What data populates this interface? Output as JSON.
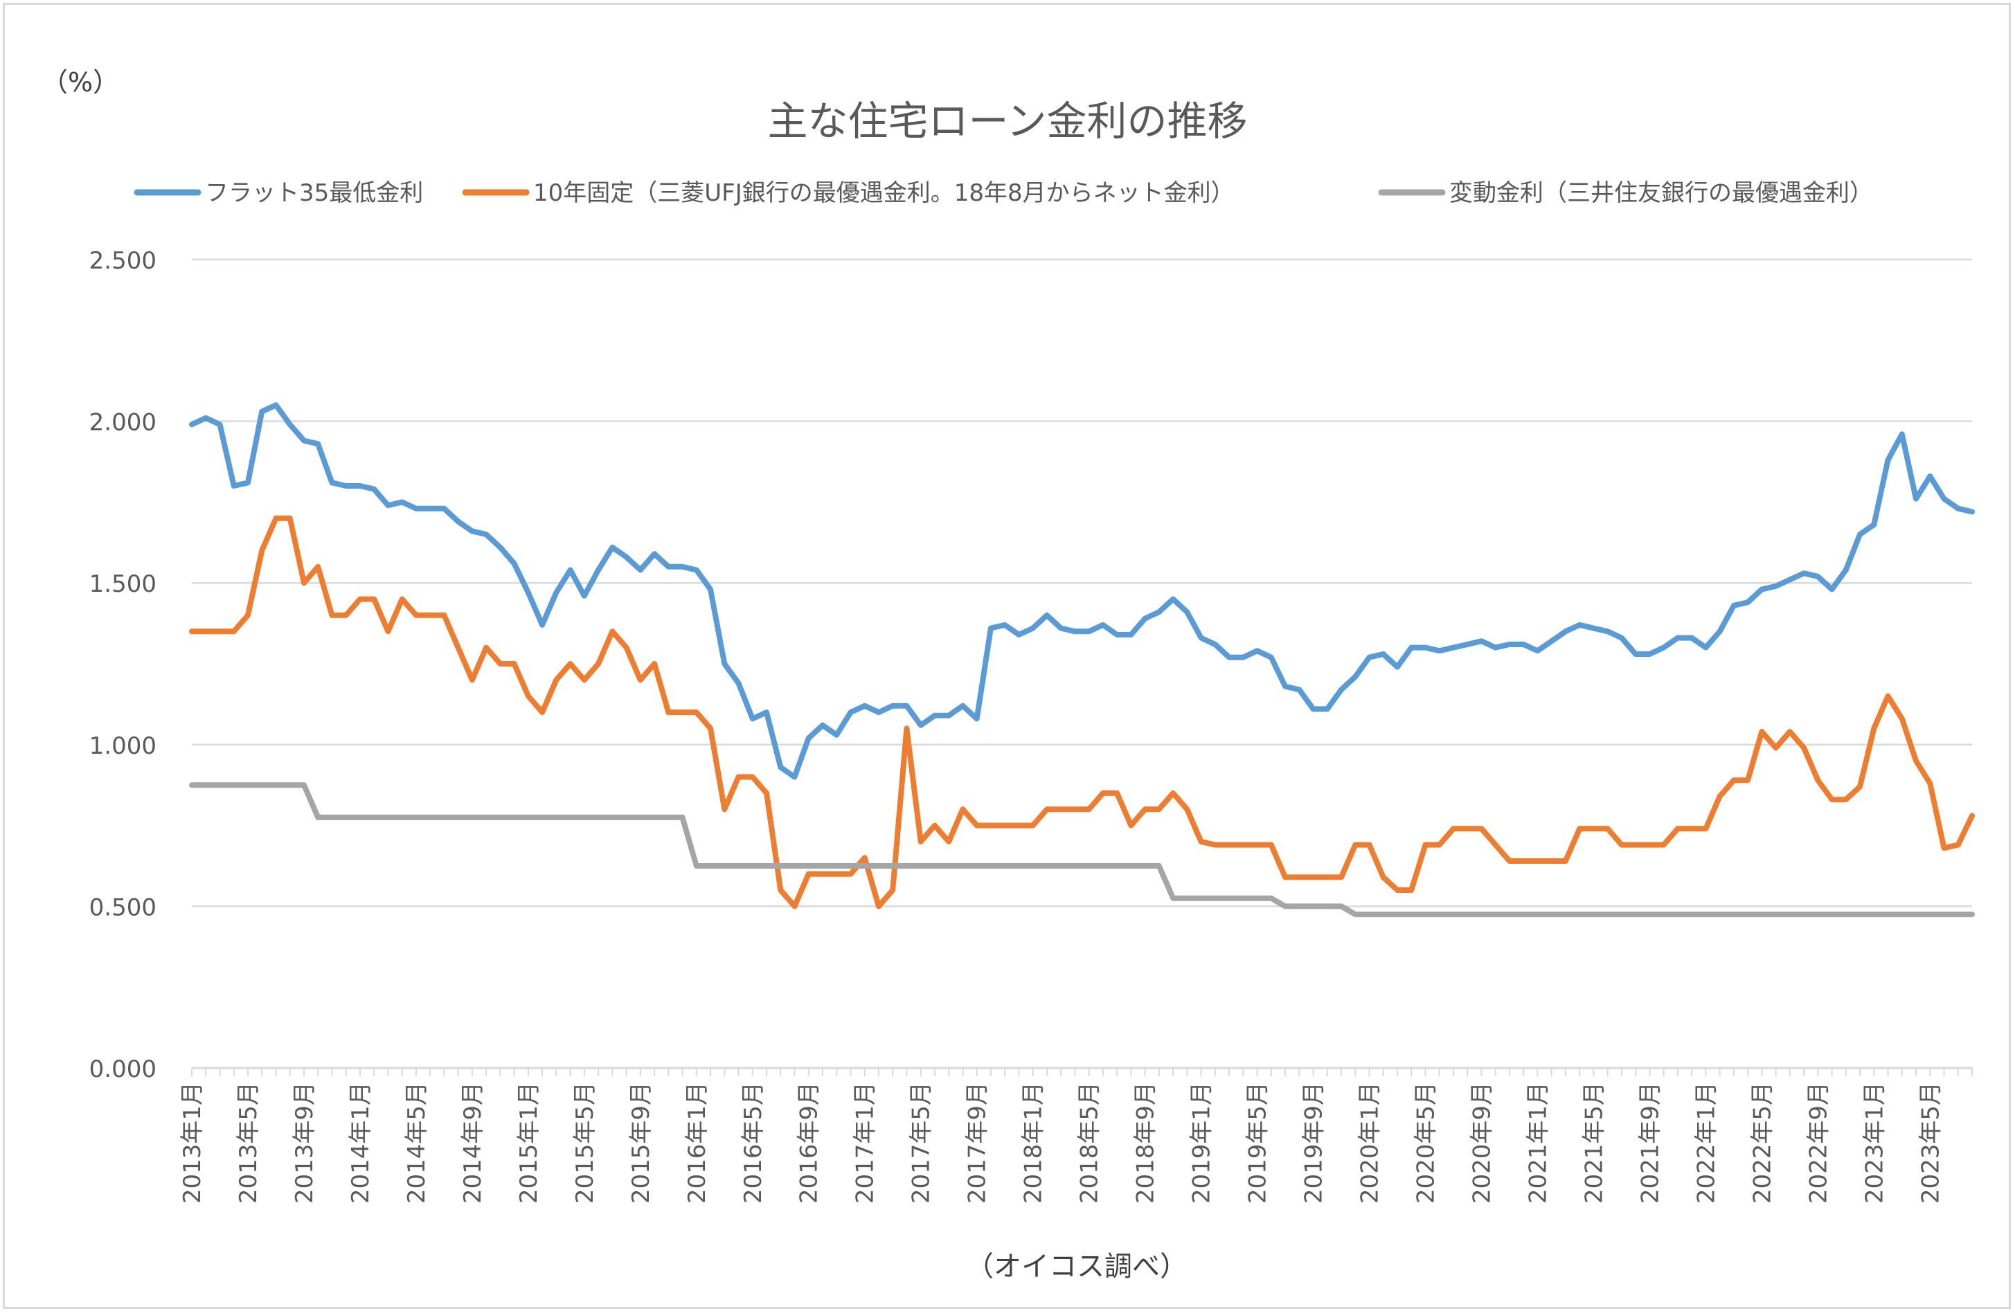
{
  "chart_data": {
    "type": "line",
    "title": "主な住宅ローン金利の推移",
    "unit_label": "（%）",
    "source_note": "（オイコス調べ）",
    "ylim": [
      0,
      2.5
    ],
    "yticks": [
      0,
      0.5,
      1.0,
      1.5,
      2.0,
      2.5
    ],
    "ytick_labels": [
      "0.000",
      "0.500",
      "1.000",
      "1.500",
      "2.000",
      "2.500"
    ],
    "xtick_labels": [
      "2013年1月",
      "2013年5月",
      "2013年9月",
      "2014年1月",
      "2014年5月",
      "2014年9月",
      "2015年1月",
      "2015年5月",
      "2015年9月",
      "2016年1月",
      "2016年5月",
      "2016年9月",
      "2017年1月",
      "2017年5月",
      "2017年9月",
      "2018年1月",
      "2018年5月",
      "2018年9月",
      "2019年1月",
      "2019年5月",
      "2019年9月",
      "2020年1月",
      "2020年5月",
      "2020年9月",
      "2021年1月",
      "2021年5月",
      "2021年9月",
      "2022年1月",
      "2022年5月",
      "2022年9月",
      "2023年1月",
      "2023年5月"
    ],
    "xtick_step_months": 4,
    "grid": true,
    "legend_position": "top",
    "series": [
      {
        "name": "フラット35最低金利",
        "color": "#5b9bd5",
        "values": [
          1.99,
          2.01,
          1.99,
          1.8,
          1.81,
          2.03,
          2.05,
          1.99,
          1.94,
          1.93,
          1.81,
          1.8,
          1.8,
          1.79,
          1.74,
          1.75,
          1.73,
          1.73,
          1.73,
          1.69,
          1.66,
          1.65,
          1.61,
          1.56,
          1.47,
          1.37,
          1.47,
          1.54,
          1.46,
          1.54,
          1.61,
          1.58,
          1.54,
          1.59,
          1.55,
          1.55,
          1.54,
          1.48,
          1.25,
          1.19,
          1.08,
          1.1,
          0.93,
          0.9,
          1.02,
          1.06,
          1.03,
          1.1,
          1.12,
          1.1,
          1.12,
          1.12,
          1.06,
          1.09,
          1.09,
          1.12,
          1.08,
          1.36,
          1.37,
          1.34,
          1.36,
          1.4,
          1.36,
          1.35,
          1.35,
          1.37,
          1.34,
          1.34,
          1.39,
          1.41,
          1.45,
          1.41,
          1.33,
          1.31,
          1.27,
          1.27,
          1.29,
          1.27,
          1.18,
          1.17,
          1.11,
          1.11,
          1.17,
          1.21,
          1.27,
          1.28,
          1.24,
          1.3,
          1.3,
          1.29,
          1.3,
          1.31,
          1.32,
          1.3,
          1.31,
          1.31,
          1.29,
          1.32,
          1.35,
          1.37,
          1.36,
          1.35,
          1.33,
          1.28,
          1.28,
          1.3,
          1.33,
          1.33,
          1.3,
          1.35,
          1.43,
          1.44,
          1.48,
          1.49,
          1.51,
          1.53,
          1.52,
          1.48,
          1.54,
          1.65,
          1.68,
          1.88,
          1.96,
          1.76,
          1.83,
          1.76,
          1.73,
          1.72
        ]
      },
      {
        "name": "10年固定（三菱UFJ銀行の最優遇金利。18年8月からネット金利）",
        "color": "#ed7d31",
        "values": [
          1.35,
          1.35,
          1.35,
          1.35,
          1.4,
          1.6,
          1.7,
          1.7,
          1.5,
          1.55,
          1.4,
          1.4,
          1.45,
          1.45,
          1.35,
          1.45,
          1.4,
          1.4,
          1.4,
          1.3,
          1.2,
          1.3,
          1.25,
          1.25,
          1.15,
          1.1,
          1.2,
          1.25,
          1.2,
          1.25,
          1.35,
          1.3,
          1.2,
          1.25,
          1.1,
          1.1,
          1.1,
          1.05,
          0.8,
          0.9,
          0.9,
          0.85,
          0.55,
          0.5,
          0.6,
          0.6,
          0.6,
          0.6,
          0.65,
          0.5,
          0.55,
          1.05,
          0.7,
          0.75,
          0.7,
          0.8,
          0.75,
          0.75,
          0.75,
          0.75,
          0.75,
          0.8,
          0.8,
          0.8,
          0.8,
          0.85,
          0.85,
          0.75,
          0.8,
          0.8,
          0.85,
          0.8,
          0.7,
          0.69,
          0.69,
          0.69,
          0.69,
          0.69,
          0.59,
          0.59,
          0.59,
          0.59,
          0.59,
          0.69,
          0.69,
          0.59,
          0.55,
          0.55,
          0.69,
          0.69,
          0.74,
          0.74,
          0.74,
          0.69,
          0.64,
          0.64,
          0.64,
          0.64,
          0.64,
          0.74,
          0.74,
          0.74,
          0.69,
          0.69,
          0.69,
          0.69,
          0.74,
          0.74,
          0.74,
          0.84,
          0.89,
          0.89,
          1.04,
          0.99,
          1.04,
          0.99,
          0.89,
          0.83,
          0.83,
          0.87,
          1.05,
          1.15,
          1.08,
          0.95,
          0.88,
          0.68,
          0.69,
          0.78
        ]
      },
      {
        "name": "変動金利（三井住友銀行の最優遇金利）",
        "color": "#a5a5a5",
        "values": [
          0.875,
          0.875,
          0.875,
          0.875,
          0.875,
          0.875,
          0.875,
          0.875,
          0.875,
          0.775,
          0.775,
          0.775,
          0.775,
          0.775,
          0.775,
          0.775,
          0.775,
          0.775,
          0.775,
          0.775,
          0.775,
          0.775,
          0.775,
          0.775,
          0.775,
          0.775,
          0.775,
          0.775,
          0.775,
          0.775,
          0.775,
          0.775,
          0.775,
          0.775,
          0.775,
          0.775,
          0.625,
          0.625,
          0.625,
          0.625,
          0.625,
          0.625,
          0.625,
          0.625,
          0.625,
          0.625,
          0.625,
          0.625,
          0.625,
          0.625,
          0.625,
          0.625,
          0.625,
          0.625,
          0.625,
          0.625,
          0.625,
          0.625,
          0.625,
          0.625,
          0.625,
          0.625,
          0.625,
          0.625,
          0.625,
          0.625,
          0.625,
          0.625,
          0.625,
          0.625,
          0.525,
          0.525,
          0.525,
          0.525,
          0.525,
          0.525,
          0.525,
          0.525,
          0.5,
          0.5,
          0.5,
          0.5,
          0.5,
          0.475,
          0.475,
          0.475,
          0.475,
          0.475,
          0.475,
          0.475,
          0.475,
          0.475,
          0.475,
          0.475,
          0.475,
          0.475,
          0.475,
          0.475,
          0.475,
          0.475,
          0.475,
          0.475,
          0.475,
          0.475,
          0.475,
          0.475,
          0.475,
          0.475,
          0.475,
          0.475,
          0.475,
          0.475,
          0.475,
          0.475,
          0.475,
          0.475,
          0.475,
          0.475,
          0.475,
          0.475,
          0.475,
          0.475,
          0.475,
          0.475,
          0.475,
          0.475,
          0.475,
          0.475
        ]
      }
    ]
  }
}
